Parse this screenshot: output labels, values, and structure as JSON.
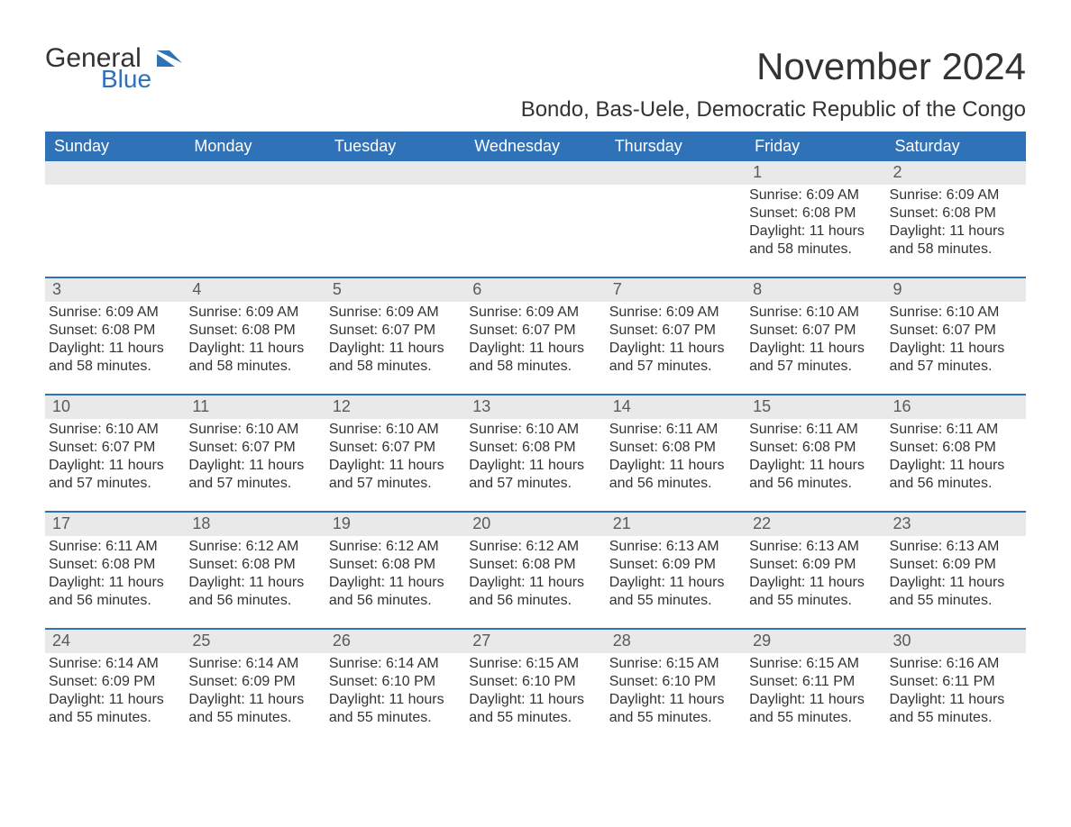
{
  "logo": {
    "word1": "General",
    "word2": "Blue",
    "flag_color": "#2f72b8"
  },
  "title": "November 2024",
  "location": "Bondo, Bas-Uele, Democratic Republic of the Congo",
  "colors": {
    "header_bg": "#2f72b8",
    "header_text": "#ffffff",
    "daynum_bg": "#e9e9e9",
    "daynum_text": "#5a5a5a",
    "body_text": "#333333",
    "rule": "#2f72b8",
    "page_bg": "#ffffff"
  },
  "day_names": [
    "Sunday",
    "Monday",
    "Tuesday",
    "Wednesday",
    "Thursday",
    "Friday",
    "Saturday"
  ],
  "weeks": [
    {
      "first": true,
      "days": [
        {
          "num": "",
          "sunrise": "",
          "sunset": "",
          "daylight": ""
        },
        {
          "num": "",
          "sunrise": "",
          "sunset": "",
          "daylight": ""
        },
        {
          "num": "",
          "sunrise": "",
          "sunset": "",
          "daylight": ""
        },
        {
          "num": "",
          "sunrise": "",
          "sunset": "",
          "daylight": ""
        },
        {
          "num": "",
          "sunrise": "",
          "sunset": "",
          "daylight": ""
        },
        {
          "num": "1",
          "sunrise": "Sunrise: 6:09 AM",
          "sunset": "Sunset: 6:08 PM",
          "daylight": "Daylight: 11 hours and 58 minutes."
        },
        {
          "num": "2",
          "sunrise": "Sunrise: 6:09 AM",
          "sunset": "Sunset: 6:08 PM",
          "daylight": "Daylight: 11 hours and 58 minutes."
        }
      ]
    },
    {
      "days": [
        {
          "num": "3",
          "sunrise": "Sunrise: 6:09 AM",
          "sunset": "Sunset: 6:08 PM",
          "daylight": "Daylight: 11 hours and 58 minutes."
        },
        {
          "num": "4",
          "sunrise": "Sunrise: 6:09 AM",
          "sunset": "Sunset: 6:08 PM",
          "daylight": "Daylight: 11 hours and 58 minutes."
        },
        {
          "num": "5",
          "sunrise": "Sunrise: 6:09 AM",
          "sunset": "Sunset: 6:07 PM",
          "daylight": "Daylight: 11 hours and 58 minutes."
        },
        {
          "num": "6",
          "sunrise": "Sunrise: 6:09 AM",
          "sunset": "Sunset: 6:07 PM",
          "daylight": "Daylight: 11 hours and 58 minutes."
        },
        {
          "num": "7",
          "sunrise": "Sunrise: 6:09 AM",
          "sunset": "Sunset: 6:07 PM",
          "daylight": "Daylight: 11 hours and 57 minutes."
        },
        {
          "num": "8",
          "sunrise": "Sunrise: 6:10 AM",
          "sunset": "Sunset: 6:07 PM",
          "daylight": "Daylight: 11 hours and 57 minutes."
        },
        {
          "num": "9",
          "sunrise": "Sunrise: 6:10 AM",
          "sunset": "Sunset: 6:07 PM",
          "daylight": "Daylight: 11 hours and 57 minutes."
        }
      ]
    },
    {
      "days": [
        {
          "num": "10",
          "sunrise": "Sunrise: 6:10 AM",
          "sunset": "Sunset: 6:07 PM",
          "daylight": "Daylight: 11 hours and 57 minutes."
        },
        {
          "num": "11",
          "sunrise": "Sunrise: 6:10 AM",
          "sunset": "Sunset: 6:07 PM",
          "daylight": "Daylight: 11 hours and 57 minutes."
        },
        {
          "num": "12",
          "sunrise": "Sunrise: 6:10 AM",
          "sunset": "Sunset: 6:07 PM",
          "daylight": "Daylight: 11 hours and 57 minutes."
        },
        {
          "num": "13",
          "sunrise": "Sunrise: 6:10 AM",
          "sunset": "Sunset: 6:08 PM",
          "daylight": "Daylight: 11 hours and 57 minutes."
        },
        {
          "num": "14",
          "sunrise": "Sunrise: 6:11 AM",
          "sunset": "Sunset: 6:08 PM",
          "daylight": "Daylight: 11 hours and 56 minutes."
        },
        {
          "num": "15",
          "sunrise": "Sunrise: 6:11 AM",
          "sunset": "Sunset: 6:08 PM",
          "daylight": "Daylight: 11 hours and 56 minutes."
        },
        {
          "num": "16",
          "sunrise": "Sunrise: 6:11 AM",
          "sunset": "Sunset: 6:08 PM",
          "daylight": "Daylight: 11 hours and 56 minutes."
        }
      ]
    },
    {
      "days": [
        {
          "num": "17",
          "sunrise": "Sunrise: 6:11 AM",
          "sunset": "Sunset: 6:08 PM",
          "daylight": "Daylight: 11 hours and 56 minutes."
        },
        {
          "num": "18",
          "sunrise": "Sunrise: 6:12 AM",
          "sunset": "Sunset: 6:08 PM",
          "daylight": "Daylight: 11 hours and 56 minutes."
        },
        {
          "num": "19",
          "sunrise": "Sunrise: 6:12 AM",
          "sunset": "Sunset: 6:08 PM",
          "daylight": "Daylight: 11 hours and 56 minutes."
        },
        {
          "num": "20",
          "sunrise": "Sunrise: 6:12 AM",
          "sunset": "Sunset: 6:08 PM",
          "daylight": "Daylight: 11 hours and 56 minutes."
        },
        {
          "num": "21",
          "sunrise": "Sunrise: 6:13 AM",
          "sunset": "Sunset: 6:09 PM",
          "daylight": "Daylight: 11 hours and 55 minutes."
        },
        {
          "num": "22",
          "sunrise": "Sunrise: 6:13 AM",
          "sunset": "Sunset: 6:09 PM",
          "daylight": "Daylight: 11 hours and 55 minutes."
        },
        {
          "num": "23",
          "sunrise": "Sunrise: 6:13 AM",
          "sunset": "Sunset: 6:09 PM",
          "daylight": "Daylight: 11 hours and 55 minutes."
        }
      ]
    },
    {
      "days": [
        {
          "num": "24",
          "sunrise": "Sunrise: 6:14 AM",
          "sunset": "Sunset: 6:09 PM",
          "daylight": "Daylight: 11 hours and 55 minutes."
        },
        {
          "num": "25",
          "sunrise": "Sunrise: 6:14 AM",
          "sunset": "Sunset: 6:09 PM",
          "daylight": "Daylight: 11 hours and 55 minutes."
        },
        {
          "num": "26",
          "sunrise": "Sunrise: 6:14 AM",
          "sunset": "Sunset: 6:10 PM",
          "daylight": "Daylight: 11 hours and 55 minutes."
        },
        {
          "num": "27",
          "sunrise": "Sunrise: 6:15 AM",
          "sunset": "Sunset: 6:10 PM",
          "daylight": "Daylight: 11 hours and 55 minutes."
        },
        {
          "num": "28",
          "sunrise": "Sunrise: 6:15 AM",
          "sunset": "Sunset: 6:10 PM",
          "daylight": "Daylight: 11 hours and 55 minutes."
        },
        {
          "num": "29",
          "sunrise": "Sunrise: 6:15 AM",
          "sunset": "Sunset: 6:11 PM",
          "daylight": "Daylight: 11 hours and 55 minutes."
        },
        {
          "num": "30",
          "sunrise": "Sunrise: 6:16 AM",
          "sunset": "Sunset: 6:11 PM",
          "daylight": "Daylight: 11 hours and 55 minutes."
        }
      ]
    }
  ]
}
